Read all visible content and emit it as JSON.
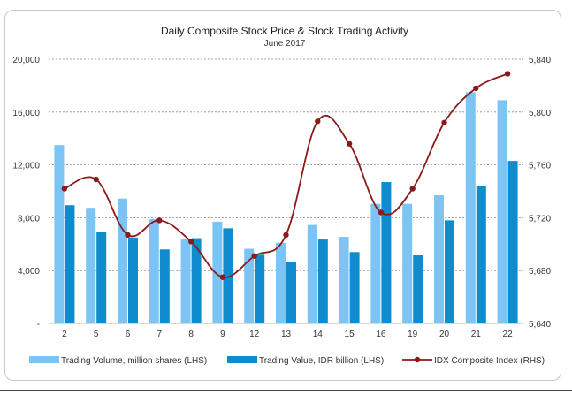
{
  "chart_data": {
    "type": "bar",
    "title": "Daily Composite Stock Price & Stock Trading Activity",
    "subtitle": "June 2017",
    "categories": [
      "2",
      "5",
      "6",
      "7",
      "8",
      "9",
      "12",
      "13",
      "14",
      "15",
      "16",
      "19",
      "20",
      "21",
      "22"
    ],
    "series": [
      {
        "name": "Trading Volume, million shares (LHS)",
        "type": "bar",
        "axis": "left",
        "color": "#7cc4f4",
        "values": [
          13500,
          8750,
          9450,
          7900,
          6350,
          7700,
          5650,
          6100,
          7450,
          6550,
          9050,
          9050,
          9700,
          17500,
          16900
        ]
      },
      {
        "name": "Trading Value, IDR billion (LHS)",
        "type": "bar",
        "axis": "left",
        "color": "#0f8ccd",
        "values": [
          8950,
          6900,
          6500,
          5600,
          6450,
          7200,
          5200,
          4650,
          6350,
          5400,
          10700,
          5150,
          7800,
          10400,
          12300
        ]
      },
      {
        "name": "IDX Composite Index (RHS)",
        "type": "line",
        "axis": "right",
        "color": "#8b1a1a",
        "values": [
          5742,
          5749,
          5707,
          5718,
          5702,
          5675,
          5691,
          5707,
          5793,
          5776,
          5724,
          5742,
          5792,
          5818,
          5829
        ]
      }
    ],
    "left_axis": {
      "ylim": [
        0,
        20000
      ],
      "ticks": [
        "-",
        "4,000",
        "8,000",
        "12,000",
        "16,000",
        "20,000"
      ],
      "tick_values": [
        0,
        4000,
        8000,
        12000,
        16000,
        20000
      ]
    },
    "right_axis": {
      "ylim": [
        5640,
        5840
      ],
      "ticks": [
        "5,640",
        "5,680",
        "5,720",
        "5,760",
        "5,800",
        "5,840"
      ],
      "tick_values": [
        5640,
        5680,
        5720,
        5760,
        5800,
        5840
      ]
    },
    "grid": true,
    "legend_position": "bottom"
  }
}
